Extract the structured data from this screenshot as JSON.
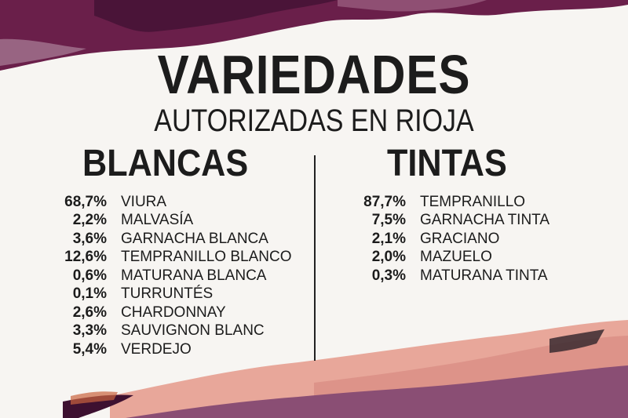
{
  "title": "VARIEDADES",
  "subtitle": "AUTORIZADAS EN RIOJA",
  "blancas": {
    "heading": "BLANCAS",
    "items": [
      {
        "pct": "68,7%",
        "name": "VIURA"
      },
      {
        "pct": "2,2%",
        "name": "MALVASÍA"
      },
      {
        "pct": "3,6%",
        "name": "GARNACHA BLANCA"
      },
      {
        "pct": "12,6%",
        "name": "TEMPRANILLO BLANCO"
      },
      {
        "pct": "0,6%",
        "name": "MATURANA BLANCA"
      },
      {
        "pct": "0,1%",
        "name": "TURRUNTÉS"
      },
      {
        "pct": "2,6%",
        "name": "CHARDONNAY"
      },
      {
        "pct": "3,3%",
        "name": "SAUVIGNON BLANC"
      },
      {
        "pct": "5,4%",
        "name": "VERDEJO"
      }
    ]
  },
  "tintas": {
    "heading": "TINTAS",
    "items": [
      {
        "pct": "87,7%",
        "name": "TEMPRANILLO"
      },
      {
        "pct": "7,5%",
        "name": "GARNACHA TINTA"
      },
      {
        "pct": "2,1%",
        "name": "GRACIANO"
      },
      {
        "pct": "2,0%",
        "name": "MAZUELO"
      },
      {
        "pct": "0,3%",
        "name": "MATURANA TINTA"
      }
    ]
  },
  "colors": {
    "background": "#f7f5f2",
    "text": "#1c1c1c",
    "wine": "#6a1f4a",
    "pink": "#e8a79a",
    "mauve": "#8a4e74"
  }
}
